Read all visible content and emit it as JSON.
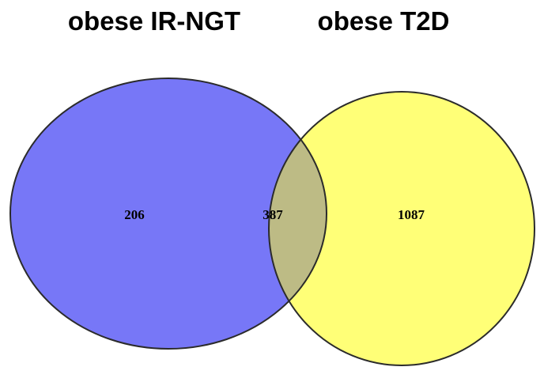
{
  "diagram": {
    "type": "venn",
    "sets": [
      {
        "name": "obese IR-NGT",
        "color": "#7777f7",
        "unique_count": "206"
      },
      {
        "name": "obese T2D",
        "color": "#ffff77",
        "unique_count": "1087"
      }
    ],
    "intersection": {
      "count": "387",
      "color": "#bdbb85"
    },
    "outline_color": "#2b2b2b"
  }
}
